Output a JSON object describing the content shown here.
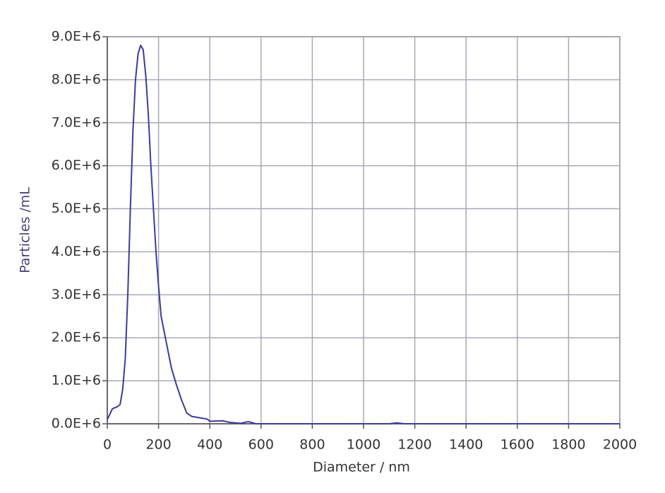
{
  "chart_data": {
    "type": "line",
    "xlabel": "Diameter / nm",
    "ylabel": "Particles /mL",
    "x": [
      0,
      20,
      40,
      50,
      60,
      70,
      80,
      90,
      100,
      110,
      120,
      130,
      140,
      150,
      160,
      170,
      180,
      190,
      200,
      210,
      230,
      250,
      270,
      290,
      310,
      330,
      360,
      390,
      400,
      450,
      480,
      520,
      550,
      580,
      700,
      1100,
      1130,
      1160,
      2000
    ],
    "series": [
      {
        "name": "Particles",
        "color": "#3b3b9e",
        "values": [
          100000,
          350000,
          400000,
          450000,
          800000,
          1500000,
          3000000,
          5000000,
          6800000,
          8000000,
          8600000,
          8800000,
          8700000,
          8100000,
          7200000,
          6000000,
          5000000,
          4000000,
          3200000,
          2500000,
          1900000,
          1300000,
          900000,
          550000,
          250000,
          170000,
          140000,
          110000,
          60000,
          70000,
          30000,
          10000,
          50000,
          0,
          0,
          0,
          20000,
          0,
          0
        ]
      }
    ],
    "xlim": [
      0,
      2000
    ],
    "xticks": [
      0,
      200,
      400,
      600,
      800,
      1000,
      1200,
      1400,
      1600,
      1800,
      2000
    ],
    "ylim": [
      0,
      9000000
    ],
    "yticks": [
      {
        "value": 0,
        "label": "0.0E+6"
      },
      {
        "value": 1000000,
        "label": "1.0E+6"
      },
      {
        "value": 2000000,
        "label": "2.0E+6"
      },
      {
        "value": 3000000,
        "label": "3.0E+6"
      },
      {
        "value": 4000000,
        "label": "4.0E+6"
      },
      {
        "value": 5000000,
        "label": "5.0E+6"
      },
      {
        "value": 6000000,
        "label": "6.0E+6"
      },
      {
        "value": 7000000,
        "label": "7.0E+6"
      },
      {
        "value": 8000000,
        "label": "8.0E+6"
      },
      {
        "value": 9000000,
        "label": "9.0E+6"
      }
    ],
    "grid": true
  }
}
